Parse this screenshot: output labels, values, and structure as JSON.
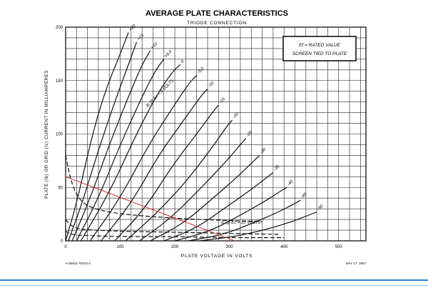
{
  "chart_data": {
    "type": "line",
    "title": "AVERAGE PLATE CHARACTERISTICS",
    "subtitle": "TRIODE CONNECTION",
    "xlabel": "PLATE VOLTAGE IN VOLTS",
    "ylabel": "PLATE (Ib) OR GRID (Ic) CURRENT IN MILLIAMPERES",
    "xlim": [
      0,
      550
    ],
    "ylim": [
      0,
      200
    ],
    "xticks": [
      0,
      100,
      200,
      300,
      400,
      500
    ],
    "yticks": [
      0,
      50,
      100,
      150,
      200
    ],
    "grid": true,
    "legend_box": [
      "Ef = RATED VALUE",
      "SCREEN TIED TO PLATE"
    ],
    "footnote_left": "K-55611-70343-4",
    "footnote_right": "MAY 17, 1957",
    "curve_label": "Ib @ Ec = 0 VOLTS",
    "grid_curve_label": "Ic @ Ec = 20 VOLTS",
    "plate_curves": [
      {
        "label": "+20",
        "ec": 20,
        "x": [
          0,
          20,
          40,
          60,
          80,
          100,
          115
        ],
        "y": [
          0,
          35,
          80,
          120,
          150,
          175,
          195
        ]
      },
      {
        "label": "+15",
        "ec": 15,
        "x": [
          5,
          30,
          60,
          90,
          115,
          130
        ],
        "y": [
          0,
          35,
          85,
          130,
          165,
          186
        ]
      },
      {
        "label": "+10",
        "ec": 10,
        "x": [
          12,
          45,
          80,
          115,
          140,
          155
        ],
        "y": [
          0,
          40,
          90,
          135,
          165,
          178
        ]
      },
      {
        "label": "+5.0",
        "ec": 5,
        "x": [
          20,
          60,
          100,
          140,
          165,
          180
        ],
        "y": [
          0,
          40,
          90,
          135,
          160,
          170
        ]
      },
      {
        "label": "0",
        "ec": 0,
        "x": [
          28,
          80,
          125,
          165,
          195,
          210
        ],
        "y": [
          0,
          45,
          95,
          135,
          158,
          165
        ]
      },
      {
        "label": "-5.0",
        "ec": -5,
        "x": [
          45,
          100,
          150,
          190,
          225,
          240
        ],
        "y": [
          0,
          40,
          88,
          120,
          147,
          155
        ]
      },
      {
        "label": "-10",
        "ec": -10,
        "x": [
          65,
          120,
          170,
          215,
          250,
          260
        ],
        "y": [
          0,
          35,
          80,
          112,
          137,
          142
        ]
      },
      {
        "label": "-15",
        "ec": -15,
        "x": [
          90,
          145,
          195,
          240,
          270,
          280
        ],
        "y": [
          0,
          30,
          70,
          100,
          121,
          127
        ]
      },
      {
        "label": "-20",
        "ec": -20,
        "x": [
          110,
          165,
          220,
          265,
          295,
          305
        ],
        "y": [
          0,
          25,
          55,
          85,
          107,
          113
        ]
      },
      {
        "label": "-25",
        "ec": -25,
        "x": [
          135,
          190,
          245,
          290,
          320,
          330
        ],
        "y": [
          0,
          20,
          48,
          72,
          90,
          96
        ]
      },
      {
        "label": "-30",
        "ec": -30,
        "x": [
          155,
          215,
          270,
          315,
          345,
          355
        ],
        "y": [
          0,
          16,
          40,
          60,
          75,
          80
        ]
      },
      {
        "label": "-35",
        "ec": -35,
        "x": [
          180,
          240,
          295,
          340,
          370,
          380
        ],
        "y": [
          0,
          12,
          32,
          48,
          60,
          64
        ]
      },
      {
        "label": "-40",
        "ec": -40,
        "x": [
          200,
          265,
          320,
          365,
          395,
          405
        ],
        "y": [
          0,
          9,
          24,
          37,
          47,
          50
        ]
      },
      {
        "label": "-45",
        "ec": -45,
        "x": [
          225,
          290,
          345,
          390,
          420,
          430
        ],
        "y": [
          0,
          6,
          17,
          27,
          35,
          38
        ]
      },
      {
        "label": "-50",
        "ec": -50,
        "x": [
          245,
          310,
          370,
          415,
          445,
          460
        ],
        "y": [
          0,
          4,
          11,
          18,
          24,
          27
        ]
      }
    ],
    "grid_curves": [
      {
        "label": "+20",
        "x": [
          0,
          10,
          25,
          50,
          100,
          200,
          300,
          360
        ],
        "y": [
          80,
          55,
          38,
          30,
          25,
          21,
          19,
          18
        ]
      },
      {
        "label": "+15",
        "x": [
          0,
          10,
          25,
          50,
          100,
          200,
          300,
          390
        ],
        "y": [
          20,
          14,
          11,
          10,
          9,
          8,
          7,
          6
        ]
      },
      {
        "label": "+10",
        "x": [
          0,
          10,
          30,
          100,
          200,
          300,
          400
        ],
        "y": [
          9,
          6,
          5,
          4,
          4,
          3,
          3
        ]
      }
    ],
    "load_line": {
      "x": [
        0,
        310
      ],
      "y": [
        60,
        0
      ],
      "color": "#d42020"
    },
    "line_color": "#111111",
    "inline_labels": [
      "+20",
      "+15",
      "+10",
      "+5.0",
      "Ib @ Ec = 0 VOLTS",
      "-5.0",
      "-10",
      "-15",
      "-20",
      "-25",
      "-30",
      "-35",
      "-40",
      "-45",
      "-50",
      "Ic @ Ec = 20 VOLTS",
      "+15",
      "+10"
    ]
  }
}
